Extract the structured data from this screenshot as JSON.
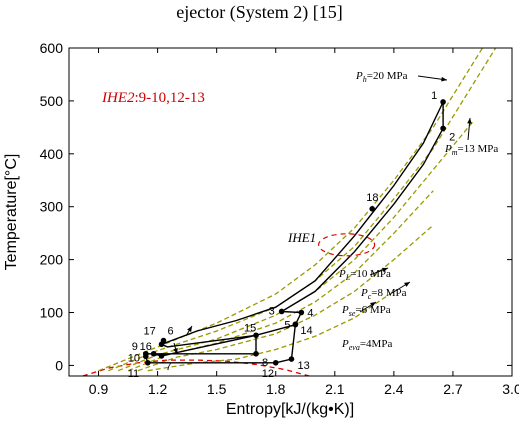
{
  "caption": "ejector (System 2) [15]",
  "chart_data": {
    "type": "line",
    "xlabel": "Entropy[kJ/(kg•K)]",
    "ylabel": "Temperature[°C]",
    "xlim": [
      0.75,
      3.0
    ],
    "ylim": [
      -20,
      600
    ],
    "xticks": [
      "0.9",
      "1.2",
      "1.5",
      "1.8",
      "2.1",
      "2.4",
      "2.7",
      "3.0"
    ],
    "yticks": [
      "0",
      "100",
      "200",
      "300",
      "400",
      "500",
      "600"
    ],
    "grid": false,
    "points": [
      {
        "label": "1",
        "x": 2.65,
        "y": 498
      },
      {
        "label": "2",
        "x": 2.65,
        "y": 448
      },
      {
        "label": "3",
        "x": 1.83,
        "y": 102
      },
      {
        "label": "4",
        "x": 1.93,
        "y": 100
      },
      {
        "label": "5",
        "x": 1.9,
        "y": 77
      },
      {
        "label": "6",
        "x": 1.23,
        "y": 47
      },
      {
        "label": "7",
        "x": 1.22,
        "y": 18
      },
      {
        "label": "8",
        "x": 1.7,
        "y": 22
      },
      {
        "label": "9",
        "x": 1.14,
        "y": 22
      },
      {
        "label": "10",
        "x": 1.14,
        "y": 17
      },
      {
        "label": "11",
        "x": 1.15,
        "y": 5
      },
      {
        "label": "12",
        "x": 1.8,
        "y": 5
      },
      {
        "label": "13",
        "x": 1.88,
        "y": 12
      },
      {
        "label": "14",
        "x": 1.9,
        "y": 78
      },
      {
        "label": "15",
        "x": 1.7,
        "y": 57
      },
      {
        "label": "16",
        "x": 1.18,
        "y": 22
      },
      {
        "label": "17",
        "x": 1.22,
        "y": 40
      },
      {
        "label": "18",
        "x": 2.29,
        "y": 296
      }
    ],
    "isobars": [
      {
        "name": "Ph=20 MPa",
        "x": [
          0.9,
          1.2,
          1.5,
          1.8,
          2.0,
          2.2,
          2.4,
          2.6,
          2.7,
          2.8,
          2.9
        ],
        "y": [
          -10,
          35,
          80,
          135,
          190,
          260,
          350,
          450,
          510,
          570,
          630
        ]
      },
      {
        "name": "Pm=13 MPa",
        "x": [
          0.95,
          1.2,
          1.5,
          1.8,
          2.0,
          2.2,
          2.4,
          2.6,
          2.7,
          2.8,
          2.95
        ],
        "y": [
          -10,
          28,
          65,
          110,
          160,
          225,
          315,
          410,
          470,
          530,
          620
        ]
      },
      {
        "name": "PL=10 MPa",
        "x": [
          1.0,
          1.2,
          1.5,
          1.8,
          2.0,
          2.2,
          2.4,
          2.6,
          2.8
        ],
        "y": [
          -10,
          20,
          50,
          95,
          140,
          200,
          280,
          370,
          460
        ]
      },
      {
        "name": "Pc=8 MPa",
        "x": [
          1.05,
          1.25,
          1.5,
          1.8,
          2.0,
          2.2,
          2.4,
          2.6
        ],
        "y": [
          -10,
          20,
          42,
          80,
          120,
          175,
          250,
          330
        ]
      },
      {
        "name": "Pse=6 MPa",
        "x": [
          1.1,
          1.3,
          1.5,
          1.8,
          2.0,
          2.2,
          2.4,
          2.6
        ],
        "y": [
          -10,
          16,
          30,
          60,
          95,
          140,
          200,
          265
        ]
      },
      {
        "name": "Peva=4MPa",
        "x": [
          1.15,
          1.4,
          1.6,
          1.8,
          2.0,
          2.2,
          2.4
        ],
        "y": [
          -10,
          5,
          12,
          30,
          55,
          90,
          140
        ]
      }
    ],
    "dome": {
      "x": [
        0.82,
        0.95,
        1.1,
        1.25,
        1.4,
        1.55,
        1.7,
        1.85,
        1.97
      ],
      "y": [
        -20,
        -5,
        5,
        10,
        10,
        8,
        2,
        -8,
        -20
      ]
    },
    "cycle_hp": {
      "x": [
        1.22,
        1.4,
        1.6,
        1.8,
        2.0,
        2.2,
        2.4,
        2.55,
        2.65,
        2.65,
        2.55,
        2.4,
        2.2,
        2.0,
        1.83,
        1.93,
        1.9,
        1.7,
        1.25,
        1.22
      ],
      "y": [
        40,
        65,
        85,
        110,
        160,
        245,
        340,
        420,
        498,
        448,
        380,
        305,
        215,
        140,
        102,
        100,
        77,
        57,
        35,
        40
      ]
    },
    "cycle_lp": {
      "x": [
        1.15,
        1.7,
        1.7,
        1.22,
        1.18,
        1.14,
        1.14,
        1.15,
        1.8,
        1.88,
        1.9
      ],
      "y": [
        22,
        22,
        57,
        18,
        22,
        22,
        17,
        5,
        5,
        12,
        78
      ]
    },
    "annotations": {
      "ihe2_prefix": "IHE2",
      "ihe2_suffix": ":9-10,12-13",
      "ihe1": "IHE1",
      "ph_label": "P",
      "ph_sub": "h",
      "ph_val": "=20 MPa",
      "pm_label": "P",
      "pm_sub": "m",
      "pm_val": "=13 MPa",
      "pl_label": "P",
      "pl_sub": "L",
      "pl_val": "=10 MPa",
      "pc_label": "P",
      "pc_sub": "c",
      "pc_val": "=8 MPa",
      "pse_label": "P",
      "pse_sub": "se",
      "pse_val": "=6 MPa",
      "peva_label": "P",
      "peva_sub": "eva",
      "peva_val": "=4MPa"
    },
    "colors": {
      "isobar": "#9a9a00",
      "cycle": "#000000",
      "dome": "#e00000",
      "ihe2_text": "#cc0000"
    }
  }
}
